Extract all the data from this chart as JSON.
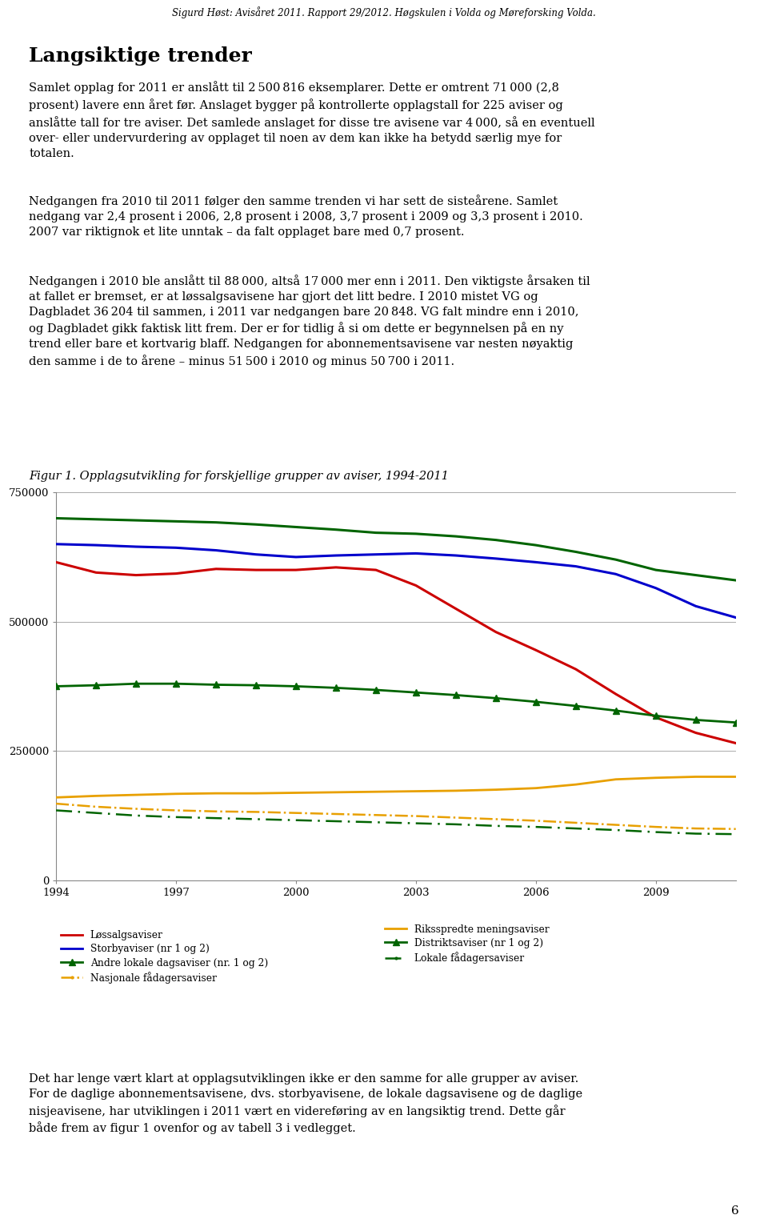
{
  "years": [
    1994,
    1995,
    1996,
    1997,
    1998,
    1999,
    2000,
    2001,
    2002,
    2003,
    2004,
    2005,
    2006,
    2007,
    2008,
    2009,
    2010,
    2011
  ],
  "lossal": [
    615000,
    595000,
    590000,
    593000,
    602000,
    600000,
    600000,
    605000,
    600000,
    570000,
    525000,
    480000,
    445000,
    408000,
    360000,
    315000,
    285000,
    265000
  ],
  "storby": [
    650000,
    648000,
    645000,
    643000,
    638000,
    630000,
    625000,
    628000,
    630000,
    632000,
    628000,
    622000,
    615000,
    607000,
    592000,
    565000,
    530000,
    508000
  ],
  "andre_lok": [
    700000,
    698000,
    696000,
    694000,
    692000,
    688000,
    683000,
    678000,
    672000,
    670000,
    665000,
    658000,
    648000,
    635000,
    620000,
    600000,
    590000,
    580000
  ],
  "rikssp": [
    160000,
    163000,
    165000,
    167000,
    168000,
    168000,
    169000,
    170000,
    171000,
    172000,
    173000,
    175000,
    178000,
    185000,
    195000,
    198000,
    200000,
    200000
  ],
  "distrikt": [
    375000,
    377000,
    380000,
    380000,
    378000,
    377000,
    375000,
    372000,
    368000,
    363000,
    358000,
    352000,
    345000,
    337000,
    328000,
    318000,
    310000,
    305000
  ],
  "nas_fad": [
    148000,
    142000,
    138000,
    135000,
    133000,
    132000,
    130000,
    128000,
    126000,
    124000,
    121000,
    118000,
    115000,
    111000,
    107000,
    103000,
    100000,
    99000
  ],
  "lok_fad": [
    135000,
    130000,
    125000,
    122000,
    120000,
    118000,
    116000,
    114000,
    112000,
    110000,
    108000,
    105000,
    103000,
    100000,
    97000,
    93000,
    90000,
    89000
  ]
}
